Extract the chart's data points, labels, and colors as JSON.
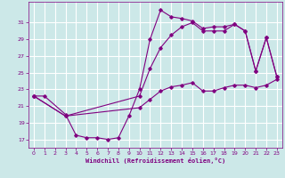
{
  "xlabel": "Windchill (Refroidissement éolien,°C)",
  "bg_color": "#cce8e8",
  "grid_color": "#ffffff",
  "line_color": "#800080",
  "xlim": [
    -0.5,
    23.5
  ],
  "ylim": [
    16.0,
    33.5
  ],
  "yticks": [
    17,
    19,
    21,
    23,
    25,
    27,
    29,
    31
  ],
  "xticks": [
    0,
    1,
    2,
    3,
    4,
    5,
    6,
    7,
    8,
    9,
    10,
    11,
    12,
    13,
    14,
    15,
    16,
    17,
    18,
    19,
    20,
    21,
    22,
    23
  ],
  "line1_x": [
    0,
    1,
    3,
    4,
    5,
    6,
    7,
    8,
    9,
    10,
    11,
    12,
    13,
    14,
    15,
    16,
    17,
    18,
    19,
    20,
    21,
    22,
    23
  ],
  "line1_y": [
    22.2,
    22.2,
    20.0,
    17.5,
    17.2,
    17.2,
    17.0,
    17.2,
    19.8,
    23.0,
    29.0,
    32.5,
    31.7,
    31.5,
    31.2,
    30.3,
    30.5,
    30.5,
    30.8,
    30.0,
    25.2,
    29.2,
    24.5
  ],
  "line2_x": [
    0,
    3,
    10,
    11,
    12,
    13,
    14,
    15,
    16,
    17,
    18,
    19,
    20,
    21,
    22,
    23
  ],
  "line2_y": [
    22.2,
    19.8,
    22.2,
    25.5,
    28.0,
    29.5,
    30.5,
    31.0,
    30.0,
    30.0,
    30.0,
    30.8,
    30.0,
    25.2,
    29.2,
    24.5
  ],
  "line3_x": [
    0,
    3,
    10,
    11,
    12,
    13,
    14,
    15,
    16,
    17,
    18,
    19,
    20,
    21,
    22,
    23
  ],
  "line3_y": [
    22.2,
    19.8,
    20.8,
    21.8,
    22.8,
    23.3,
    23.5,
    23.8,
    22.8,
    22.8,
    23.2,
    23.5,
    23.5,
    23.2,
    23.5,
    24.2
  ]
}
